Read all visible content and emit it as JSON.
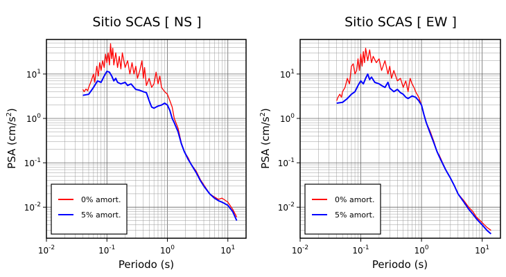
{
  "chart_data": [
    {
      "type": "line",
      "title": "Sitio SCAS [ NS ]",
      "xlabel": "Periodo (s)",
      "ylabel": "PSA (cm/s2)",
      "xscale": "log",
      "yscale": "log",
      "xlim": [
        0.01,
        20
      ],
      "ylim": [
        0.002,
        60
      ],
      "x_ticks": [
        0.01,
        0.1,
        1,
        10
      ],
      "y_ticks": [
        0.01,
        0.1,
        1,
        10
      ],
      "grid": true,
      "legend": "bottom-left",
      "series": [
        {
          "name": "0% amort.",
          "color": "#ff0000",
          "points": [
            [
              0.04,
              4.5
            ],
            [
              0.042,
              4.0
            ],
            [
              0.045,
              4.6
            ],
            [
              0.048,
              4.2
            ],
            [
              0.05,
              5.0
            ],
            [
              0.055,
              7.0
            ],
            [
              0.06,
              10.0
            ],
            [
              0.063,
              6.5
            ],
            [
              0.068,
              15.0
            ],
            [
              0.072,
              9.0
            ],
            [
              0.076,
              18.0
            ],
            [
              0.08,
              12.0
            ],
            [
              0.085,
              20.0
            ],
            [
              0.09,
              14.0
            ],
            [
              0.095,
              28.0
            ],
            [
              0.1,
              18.0
            ],
            [
              0.105,
              30.0
            ],
            [
              0.11,
              16.0
            ],
            [
              0.115,
              48.0
            ],
            [
              0.12,
              22.0
            ],
            [
              0.125,
              38.0
            ],
            [
              0.13,
              16.0
            ],
            [
              0.14,
              30.0
            ],
            [
              0.15,
              14.0
            ],
            [
              0.16,
              25.0
            ],
            [
              0.17,
              13.0
            ],
            [
              0.18,
              30.0
            ],
            [
              0.2,
              14.0
            ],
            [
              0.22,
              20.0
            ],
            [
              0.24,
              10.0
            ],
            [
              0.26,
              18.0
            ],
            [
              0.28,
              10.0
            ],
            [
              0.3,
              15.0
            ],
            [
              0.32,
              8.0
            ],
            [
              0.35,
              12.0
            ],
            [
              0.38,
              20.0
            ],
            [
              0.4,
              8.0
            ],
            [
              0.42,
              14.0
            ],
            [
              0.45,
              5.5
            ],
            [
              0.5,
              8.0
            ],
            [
              0.55,
              5.0
            ],
            [
              0.6,
              6.0
            ],
            [
              0.65,
              11.0
            ],
            [
              0.7,
              6.0
            ],
            [
              0.75,
              9.0
            ],
            [
              0.8,
              5.0
            ],
            [
              0.9,
              4.0
            ],
            [
              1.0,
              3.5
            ],
            [
              1.1,
              2.5
            ],
            [
              1.2,
              1.8
            ],
            [
              1.3,
              1.0
            ],
            [
              1.5,
              0.6
            ],
            [
              1.7,
              0.28
            ],
            [
              1.9,
              0.18
            ],
            [
              2.2,
              0.13
            ],
            [
              2.5,
              0.09
            ],
            [
              3.0,
              0.065
            ],
            [
              3.5,
              0.042
            ],
            [
              4.0,
              0.032
            ],
            [
              5.0,
              0.02
            ],
            [
              6.0,
              0.017
            ],
            [
              7.0,
              0.015
            ],
            [
              8.0,
              0.016
            ],
            [
              10.0,
              0.013
            ],
            [
              12.0,
              0.009
            ],
            [
              14.0,
              0.006
            ]
          ]
        },
        {
          "name": "5% amort.",
          "color": "#0000ff",
          "points": [
            [
              0.04,
              3.3
            ],
            [
              0.05,
              3.5
            ],
            [
              0.055,
              4.2
            ],
            [
              0.06,
              5.0
            ],
            [
              0.07,
              7.0
            ],
            [
              0.08,
              6.5
            ],
            [
              0.09,
              9.0
            ],
            [
              0.1,
              11.5
            ],
            [
              0.11,
              11.0
            ],
            [
              0.12,
              9.0
            ],
            [
              0.13,
              7.0
            ],
            [
              0.14,
              8.0
            ],
            [
              0.15,
              6.5
            ],
            [
              0.17,
              6.0
            ],
            [
              0.2,
              6.5
            ],
            [
              0.22,
              5.5
            ],
            [
              0.25,
              6.0
            ],
            [
              0.28,
              5.0
            ],
            [
              0.3,
              4.5
            ],
            [
              0.35,
              4.3
            ],
            [
              0.4,
              4.0
            ],
            [
              0.45,
              3.8
            ],
            [
              0.5,
              2.5
            ],
            [
              0.55,
              1.8
            ],
            [
              0.6,
              1.7
            ],
            [
              0.7,
              1.9
            ],
            [
              0.8,
              2.0
            ],
            [
              0.9,
              2.2
            ],
            [
              1.0,
              2.0
            ],
            [
              1.1,
              1.5
            ],
            [
              1.2,
              1.0
            ],
            [
              1.3,
              0.8
            ],
            [
              1.5,
              0.5
            ],
            [
              1.7,
              0.27
            ],
            [
              1.9,
              0.18
            ],
            [
              2.2,
              0.12
            ],
            [
              2.5,
              0.09
            ],
            [
              3.0,
              0.06
            ],
            [
              3.5,
              0.04
            ],
            [
              4.0,
              0.03
            ],
            [
              5.0,
              0.02
            ],
            [
              6.0,
              0.016
            ],
            [
              7.0,
              0.014
            ],
            [
              8.0,
              0.013
            ],
            [
              10.0,
              0.011
            ],
            [
              12.0,
              0.008
            ],
            [
              14.0,
              0.005
            ]
          ]
        }
      ]
    },
    {
      "type": "line",
      "title": "Sitio SCAS [ EW ]",
      "xlabel": "Periodo (s)",
      "ylabel": "PSA (cm/s2)",
      "xscale": "log",
      "yscale": "log",
      "xlim": [
        0.01,
        20
      ],
      "ylim": [
        0.002,
        60
      ],
      "x_ticks": [
        0.01,
        0.1,
        1,
        10
      ],
      "y_ticks": [
        0.01,
        0.1,
        1,
        10
      ],
      "grid": true,
      "legend": "bottom-left",
      "series": [
        {
          "name": "0% amort.",
          "color": "#ff0000",
          "points": [
            [
              0.04,
              2.5
            ],
            [
              0.042,
              3.0
            ],
            [
              0.045,
              3.5
            ],
            [
              0.048,
              3.0
            ],
            [
              0.05,
              4.0
            ],
            [
              0.055,
              5.0
            ],
            [
              0.06,
              8.0
            ],
            [
              0.065,
              6.0
            ],
            [
              0.07,
              15.0
            ],
            [
              0.075,
              17.0
            ],
            [
              0.08,
              10.0
            ],
            [
              0.085,
              12.0
            ],
            [
              0.09,
              22.0
            ],
            [
              0.095,
              12.0
            ],
            [
              0.1,
              28.0
            ],
            [
              0.105,
              15.0
            ],
            [
              0.11,
              32.0
            ],
            [
              0.115,
              18.0
            ],
            [
              0.12,
              38.0
            ],
            [
              0.13,
              20.0
            ],
            [
              0.14,
              35.0
            ],
            [
              0.15,
              18.0
            ],
            [
              0.16,
              25.0
            ],
            [
              0.18,
              18.0
            ],
            [
              0.2,
              22.0
            ],
            [
              0.22,
              12.0
            ],
            [
              0.25,
              20.0
            ],
            [
              0.28,
              10.0
            ],
            [
              0.3,
              15.0
            ],
            [
              0.32,
              8.0
            ],
            [
              0.35,
              12.0
            ],
            [
              0.4,
              7.0
            ],
            [
              0.45,
              8.0
            ],
            [
              0.5,
              5.0
            ],
            [
              0.55,
              7.0
            ],
            [
              0.6,
              4.0
            ],
            [
              0.65,
              8.0
            ],
            [
              0.7,
              6.0
            ],
            [
              0.75,
              5.0
            ],
            [
              0.8,
              4.0
            ],
            [
              0.9,
              3.0
            ],
            [
              1.0,
              2.0
            ],
            [
              1.1,
              1.2
            ],
            [
              1.2,
              0.8
            ],
            [
              1.4,
              0.5
            ],
            [
              1.6,
              0.3
            ],
            [
              1.8,
              0.18
            ],
            [
              2.0,
              0.14
            ],
            [
              2.5,
              0.07
            ],
            [
              3.0,
              0.045
            ],
            [
              3.5,
              0.03
            ],
            [
              4.0,
              0.02
            ],
            [
              5.0,
              0.014
            ],
            [
              6.0,
              0.01
            ],
            [
              7.0,
              0.008
            ],
            [
              8.0,
              0.006
            ],
            [
              10.0,
              0.0045
            ],
            [
              12.0,
              0.0035
            ],
            [
              14.0,
              0.003
            ]
          ]
        },
        {
          "name": "5% amort.",
          "color": "#0000ff",
          "points": [
            [
              0.04,
              2.2
            ],
            [
              0.05,
              2.3
            ],
            [
              0.06,
              2.8
            ],
            [
              0.07,
              3.5
            ],
            [
              0.08,
              4.0
            ],
            [
              0.09,
              5.5
            ],
            [
              0.1,
              7.0
            ],
            [
              0.11,
              6.0
            ],
            [
              0.12,
              8.0
            ],
            [
              0.13,
              10.0
            ],
            [
              0.14,
              7.5
            ],
            [
              0.15,
              8.5
            ],
            [
              0.17,
              6.5
            ],
            [
              0.2,
              6.0
            ],
            [
              0.22,
              5.5
            ],
            [
              0.25,
              5.0
            ],
            [
              0.28,
              6.5
            ],
            [
              0.3,
              4.8
            ],
            [
              0.35,
              4.0
            ],
            [
              0.4,
              4.5
            ],
            [
              0.45,
              3.8
            ],
            [
              0.5,
              3.5
            ],
            [
              0.55,
              3.0
            ],
            [
              0.6,
              2.8
            ],
            [
              0.7,
              3.2
            ],
            [
              0.8,
              3.0
            ],
            [
              0.9,
              2.5
            ],
            [
              1.0,
              2.0
            ],
            [
              1.1,
              1.2
            ],
            [
              1.2,
              0.8
            ],
            [
              1.4,
              0.45
            ],
            [
              1.6,
              0.28
            ],
            [
              1.8,
              0.18
            ],
            [
              2.0,
              0.13
            ],
            [
              2.5,
              0.07
            ],
            [
              3.0,
              0.045
            ],
            [
              3.5,
              0.03
            ],
            [
              4.0,
              0.02
            ],
            [
              5.0,
              0.013
            ],
            [
              6.0,
              0.009
            ],
            [
              7.0,
              0.007
            ],
            [
              8.0,
              0.0055
            ],
            [
              10.0,
              0.004
            ],
            [
              12.0,
              0.003
            ],
            [
              14.0,
              0.0025
            ]
          ]
        }
      ]
    }
  ]
}
